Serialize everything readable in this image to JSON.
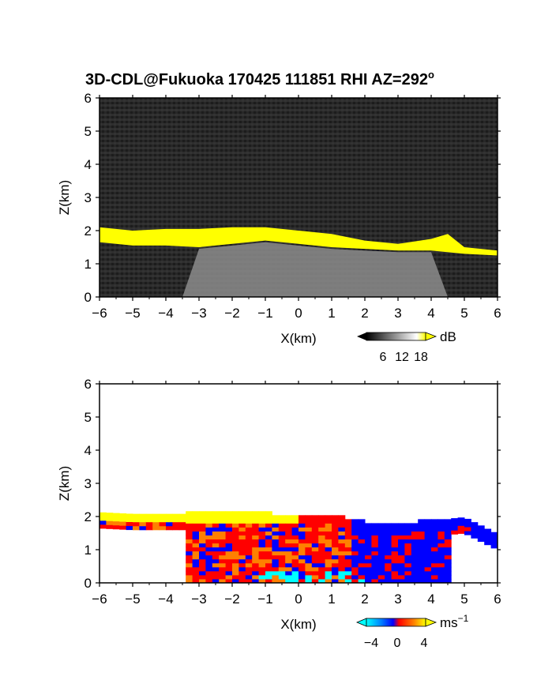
{
  "title": "3D-CDL@Fukuoka 170425 111851 RHI AZ=292",
  "title_superscript": "o",
  "chart_data": [
    {
      "type": "heatmap",
      "quantity": "backscatter intensity",
      "xlabel": "X(km)",
      "ylabel": "Z(km)",
      "xlim": [
        -6,
        6
      ],
      "ylim": [
        0,
        6
      ],
      "xticks": [
        -6,
        -5,
        -4,
        -3,
        -2,
        -1,
        0,
        1,
        2,
        3,
        4,
        5,
        6
      ],
      "yticks": [
        0,
        1,
        2,
        3,
        4,
        5,
        6
      ],
      "background_color": "#2a2a2a",
      "colorbar": {
        "unit": "dB",
        "ticks": [
          "6",
          "12",
          "18"
        ],
        "range": [
          0,
          20
        ],
        "colors": [
          "#000000",
          "#ffffff",
          "#ffff00"
        ]
      },
      "layer_top_km": [
        [
          -6,
          2.1
        ],
        [
          -5,
          2.0
        ],
        [
          -4,
          2.05
        ],
        [
          -3,
          2.05
        ],
        [
          -2,
          2.1
        ],
        [
          -1,
          2.1
        ],
        [
          0,
          2.0
        ],
        [
          1,
          1.9
        ],
        [
          2,
          1.7
        ],
        [
          3,
          1.6
        ],
        [
          4,
          1.75
        ],
        [
          4.5,
          1.9
        ],
        [
          5,
          1.5
        ],
        [
          6,
          1.4
        ]
      ],
      "layer_bottom_km": [
        [
          -6,
          1.65
        ],
        [
          -5,
          1.55
        ],
        [
          -4,
          1.55
        ],
        [
          -3,
          1.5
        ],
        [
          -2,
          1.6
        ],
        [
          -1,
          1.7
        ],
        [
          0,
          1.6
        ],
        [
          1,
          1.5
        ],
        [
          2,
          1.45
        ],
        [
          3,
          1.4
        ],
        [
          4,
          1.4
        ],
        [
          5,
          1.3
        ],
        [
          6,
          1.25
        ]
      ]
    },
    {
      "type": "heatmap",
      "quantity": "radial velocity",
      "xlabel": "X(km)",
      "ylabel": "Z(km)",
      "xlim": [
        -6,
        6
      ],
      "ylim": [
        0,
        6
      ],
      "xticks": [
        -6,
        -5,
        -4,
        -3,
        -2,
        -1,
        0,
        1,
        2,
        3,
        4,
        5,
        6
      ],
      "yticks": [
        0,
        1,
        2,
        3,
        4,
        5,
        6
      ],
      "background_color": "#ffffff",
      "colorbar": {
        "unit": "ms",
        "unit_superscript": "−1",
        "ticks": [
          "−4",
          "0",
          "4"
        ],
        "range": [
          -5,
          5
        ],
        "colors": [
          "#00ffff",
          "#0080ff",
          "#0000ff",
          "#ff0000",
          "#ff8000",
          "#ffff00"
        ]
      },
      "layer_top_km": [
        [
          -6,
          2.1
        ],
        [
          -5,
          2.05
        ],
        [
          -4,
          2.05
        ],
        [
          -3,
          2.05
        ],
        [
          -2,
          2.1
        ],
        [
          -1,
          2.05
        ],
        [
          0,
          2.0
        ],
        [
          1,
          2.0
        ],
        [
          2,
          1.8
        ],
        [
          3,
          1.75
        ],
        [
          4,
          1.85
        ],
        [
          5,
          1.95
        ],
        [
          6,
          1.45
        ]
      ],
      "echo_bottom_km": 0
    }
  ]
}
